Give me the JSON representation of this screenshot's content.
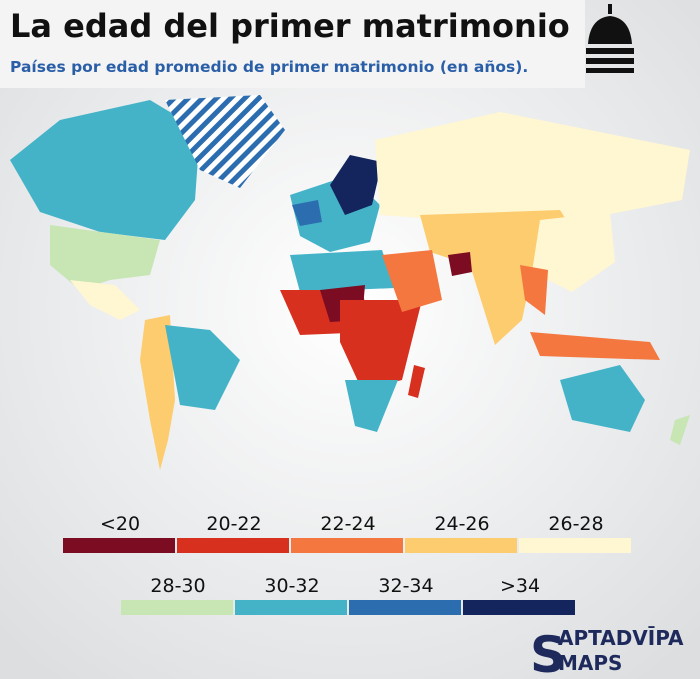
{
  "header": {
    "title": "La edad del primer matrimonio",
    "subtitle": "Países por edad promedio de primer matrimonio (en años)."
  },
  "legend": {
    "items": [
      {
        "label": "<20",
        "color": "#7b0c22"
      },
      {
        "label": "20-22",
        "color": "#d7301f"
      },
      {
        "label": "22-24",
        "color": "#f4773f"
      },
      {
        "label": "24-26",
        "color": "#fdcc6e"
      },
      {
        "label": "26-28",
        "color": "#fff6d2"
      },
      {
        "label": "28-30",
        "color": "#c8e6b4"
      },
      {
        "label": "30-32",
        "color": "#44b3c8"
      },
      {
        "label": "32-34",
        "color": "#2c6db0"
      },
      {
        "label": ">34",
        "color": "#14245c"
      }
    ]
  },
  "logo": {
    "initial": "S",
    "line1": "APTADVĪPA",
    "line2": "MAPS"
  }
}
